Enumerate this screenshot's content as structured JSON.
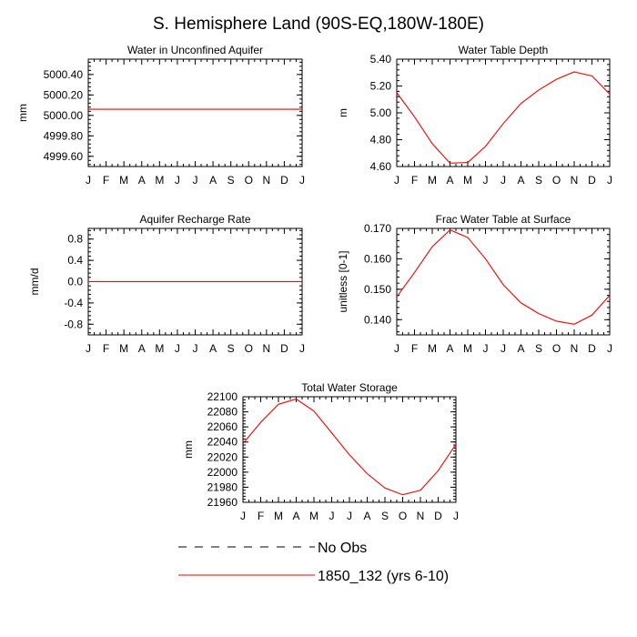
{
  "figure_title": "S. Hemisphere Land (90S-EQ,180W-180E)",
  "months": [
    "J",
    "F",
    "M",
    "A",
    "M",
    "J",
    "J",
    "A",
    "S",
    "O",
    "N",
    "D",
    "J"
  ],
  "legend": {
    "obs_label": "No Obs",
    "model_label": "1850_132 (yrs 6-10)",
    "model_color": "#ff0000",
    "obs_color": "#000000"
  },
  "chart_data": [
    {
      "type": "line",
      "title": "Water in Unconfined Aquifer",
      "ylabel": "mm",
      "ylim": [
        4999.5,
        5000.55
      ],
      "yticks": [
        4999.6,
        4999.8,
        5000.0,
        5000.2,
        5000.4
      ],
      "ytick_labels": [
        "4999.60",
        "4999.80",
        "5000.00",
        "5000.20",
        "5000.40"
      ],
      "x": [
        1,
        2,
        3,
        4,
        5,
        6,
        7,
        8,
        9,
        10,
        11,
        12,
        13
      ],
      "series": [
        {
          "name": "1850_132 (yrs 6-10)",
          "values": [
            5000.06,
            5000.06,
            5000.06,
            5000.06,
            5000.06,
            5000.06,
            5000.06,
            5000.06,
            5000.06,
            5000.06,
            5000.06,
            5000.06,
            5000.06
          ]
        }
      ]
    },
    {
      "type": "line",
      "title": "Water Table Depth",
      "ylabel": "m",
      "ylim": [
        4.6,
        5.4
      ],
      "yticks": [
        4.6,
        4.8,
        5.0,
        5.2,
        5.4
      ],
      "ytick_labels": [
        "4.60",
        "4.80",
        "5.00",
        "5.20",
        "5.40"
      ],
      "x": [
        1,
        2,
        3,
        4,
        5,
        6,
        7,
        8,
        9,
        10,
        11,
        12,
        13
      ],
      "series": [
        {
          "name": "1850_132 (yrs 6-10)",
          "values": [
            5.15,
            4.97,
            4.77,
            4.625,
            4.63,
            4.75,
            4.92,
            5.07,
            5.17,
            5.25,
            5.305,
            5.275,
            5.14
          ]
        }
      ]
    },
    {
      "type": "line",
      "title": "Aquifer Recharge Rate",
      "ylabel": "mm/d",
      "ylim": [
        -1.0,
        1.0
      ],
      "yticks": [
        -0.8,
        -0.4,
        0.0,
        0.4,
        0.8
      ],
      "ytick_labels": [
        "-0.8",
        "-0.4",
        "0.0",
        "0.4",
        "0.8"
      ],
      "x": [
        1,
        2,
        3,
        4,
        5,
        6,
        7,
        8,
        9,
        10,
        11,
        12,
        13
      ],
      "series": [
        {
          "name": "1850_132 (yrs 6-10)",
          "values": [
            0,
            0,
            0,
            0,
            0,
            0,
            0,
            0,
            0,
            0,
            0,
            0,
            0
          ]
        }
      ]
    },
    {
      "type": "line",
      "title": "Frac Water Table at Surface",
      "ylabel": "unitless [0-1]",
      "ylim": [
        0.135,
        0.17
      ],
      "yticks": [
        0.14,
        0.15,
        0.16,
        0.17
      ],
      "ytick_labels": [
        "0.140",
        "0.150",
        "0.160",
        "0.170"
      ],
      "x": [
        1,
        2,
        3,
        4,
        5,
        6,
        7,
        8,
        9,
        10,
        11,
        12,
        13
      ],
      "series": [
        {
          "name": "1850_132 (yrs 6-10)",
          "values": [
            0.1475,
            0.1555,
            0.164,
            0.1695,
            0.167,
            0.16,
            0.1515,
            0.1455,
            0.142,
            0.1395,
            0.1385,
            0.1415,
            0.148
          ]
        }
      ]
    },
    {
      "type": "line",
      "title": "Total Water Storage",
      "ylabel": "mm",
      "ylim": [
        21960,
        22100
      ],
      "yticks": [
        21960,
        21980,
        22000,
        22020,
        22040,
        22060,
        22080,
        22100
      ],
      "ytick_labels": [
        "21960",
        "21980",
        "22000",
        "22020",
        "22040",
        "22060",
        "22080",
        "22100"
      ],
      "x": [
        1,
        2,
        3,
        4,
        5,
        6,
        7,
        8,
        9,
        10,
        11,
        12,
        13
      ],
      "series": [
        {
          "name": "1850_132 (yrs 6-10)",
          "values": [
            22038,
            22066,
            22090,
            22097,
            22081,
            22052,
            22023,
            21998,
            21979,
            21970,
            21976,
            22002,
            22037
          ]
        }
      ]
    }
  ]
}
